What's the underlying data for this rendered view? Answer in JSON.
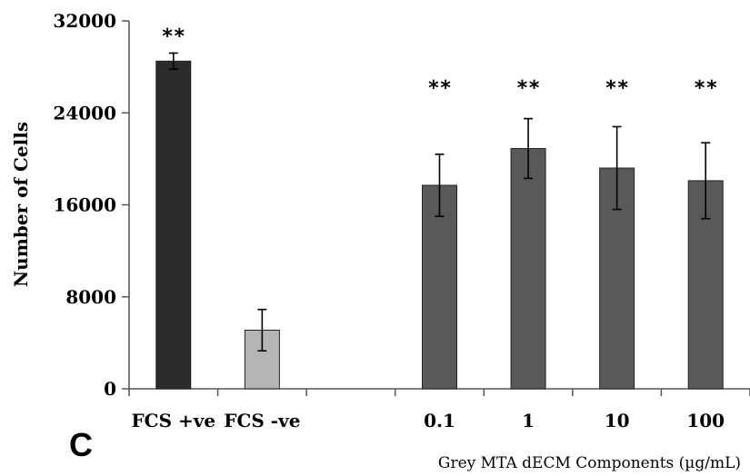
{
  "chart_data": {
    "type": "bar",
    "panel_label": "C",
    "ylabel": "Number of Cells",
    "xlabel": "Grey MTA dECM Components (µg/mL)",
    "ylim": [
      0,
      32000
    ],
    "yticks": [
      "0",
      "8000",
      "16000",
      "24000",
      "32000"
    ],
    "categories": [
      "FCS +ve",
      "FCS -ve",
      "",
      "0.1",
      "1",
      "10",
      "100"
    ],
    "values": [
      28500,
      5100,
      null,
      17700,
      20900,
      19200,
      18100
    ],
    "errors": [
      700,
      1800,
      null,
      2700,
      2600,
      3600,
      3300
    ],
    "colors": [
      "#2b2b2b",
      "#b5b5b5",
      null,
      "#595959",
      "#595959",
      "#595959",
      "#595959"
    ],
    "significance": [
      "**",
      "",
      "",
      "**",
      "**",
      "**",
      "**"
    ],
    "grid": false
  }
}
